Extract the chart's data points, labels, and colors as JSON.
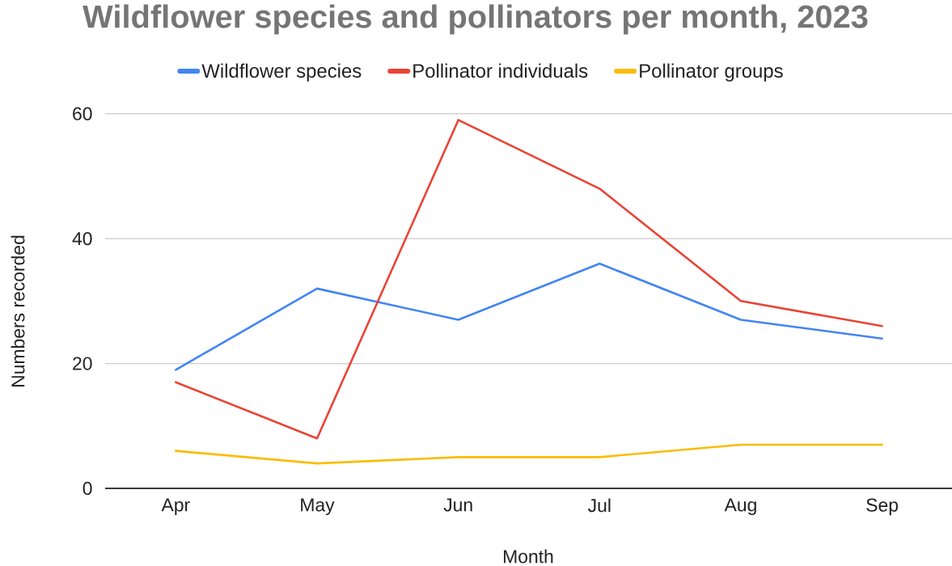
{
  "chart_data": {
    "type": "line",
    "title": "Wildflower species and pollinators per month, 2023",
    "xlabel": "Month",
    "ylabel": "Numbers recorded",
    "categories": [
      "Apr",
      "May",
      "Jun",
      "Jul",
      "Aug",
      "Sep"
    ],
    "series": [
      {
        "name": "Wildflower species",
        "color": "#4285f4",
        "values": [
          19,
          32,
          27,
          36,
          27,
          24
        ]
      },
      {
        "name": "Pollinator individuals",
        "color": "#ea4335",
        "values": [
          17,
          8,
          59,
          48,
          30,
          26
        ]
      },
      {
        "name": "Pollinator groups",
        "color": "#fbbc04",
        "values": [
          6,
          4,
          5,
          5,
          7,
          7
        ]
      }
    ],
    "ylim": [
      0,
      60
    ],
    "yticks": [
      0,
      20,
      40,
      60
    ],
    "grid": "y",
    "legend": "top",
    "line_style": "solid"
  }
}
